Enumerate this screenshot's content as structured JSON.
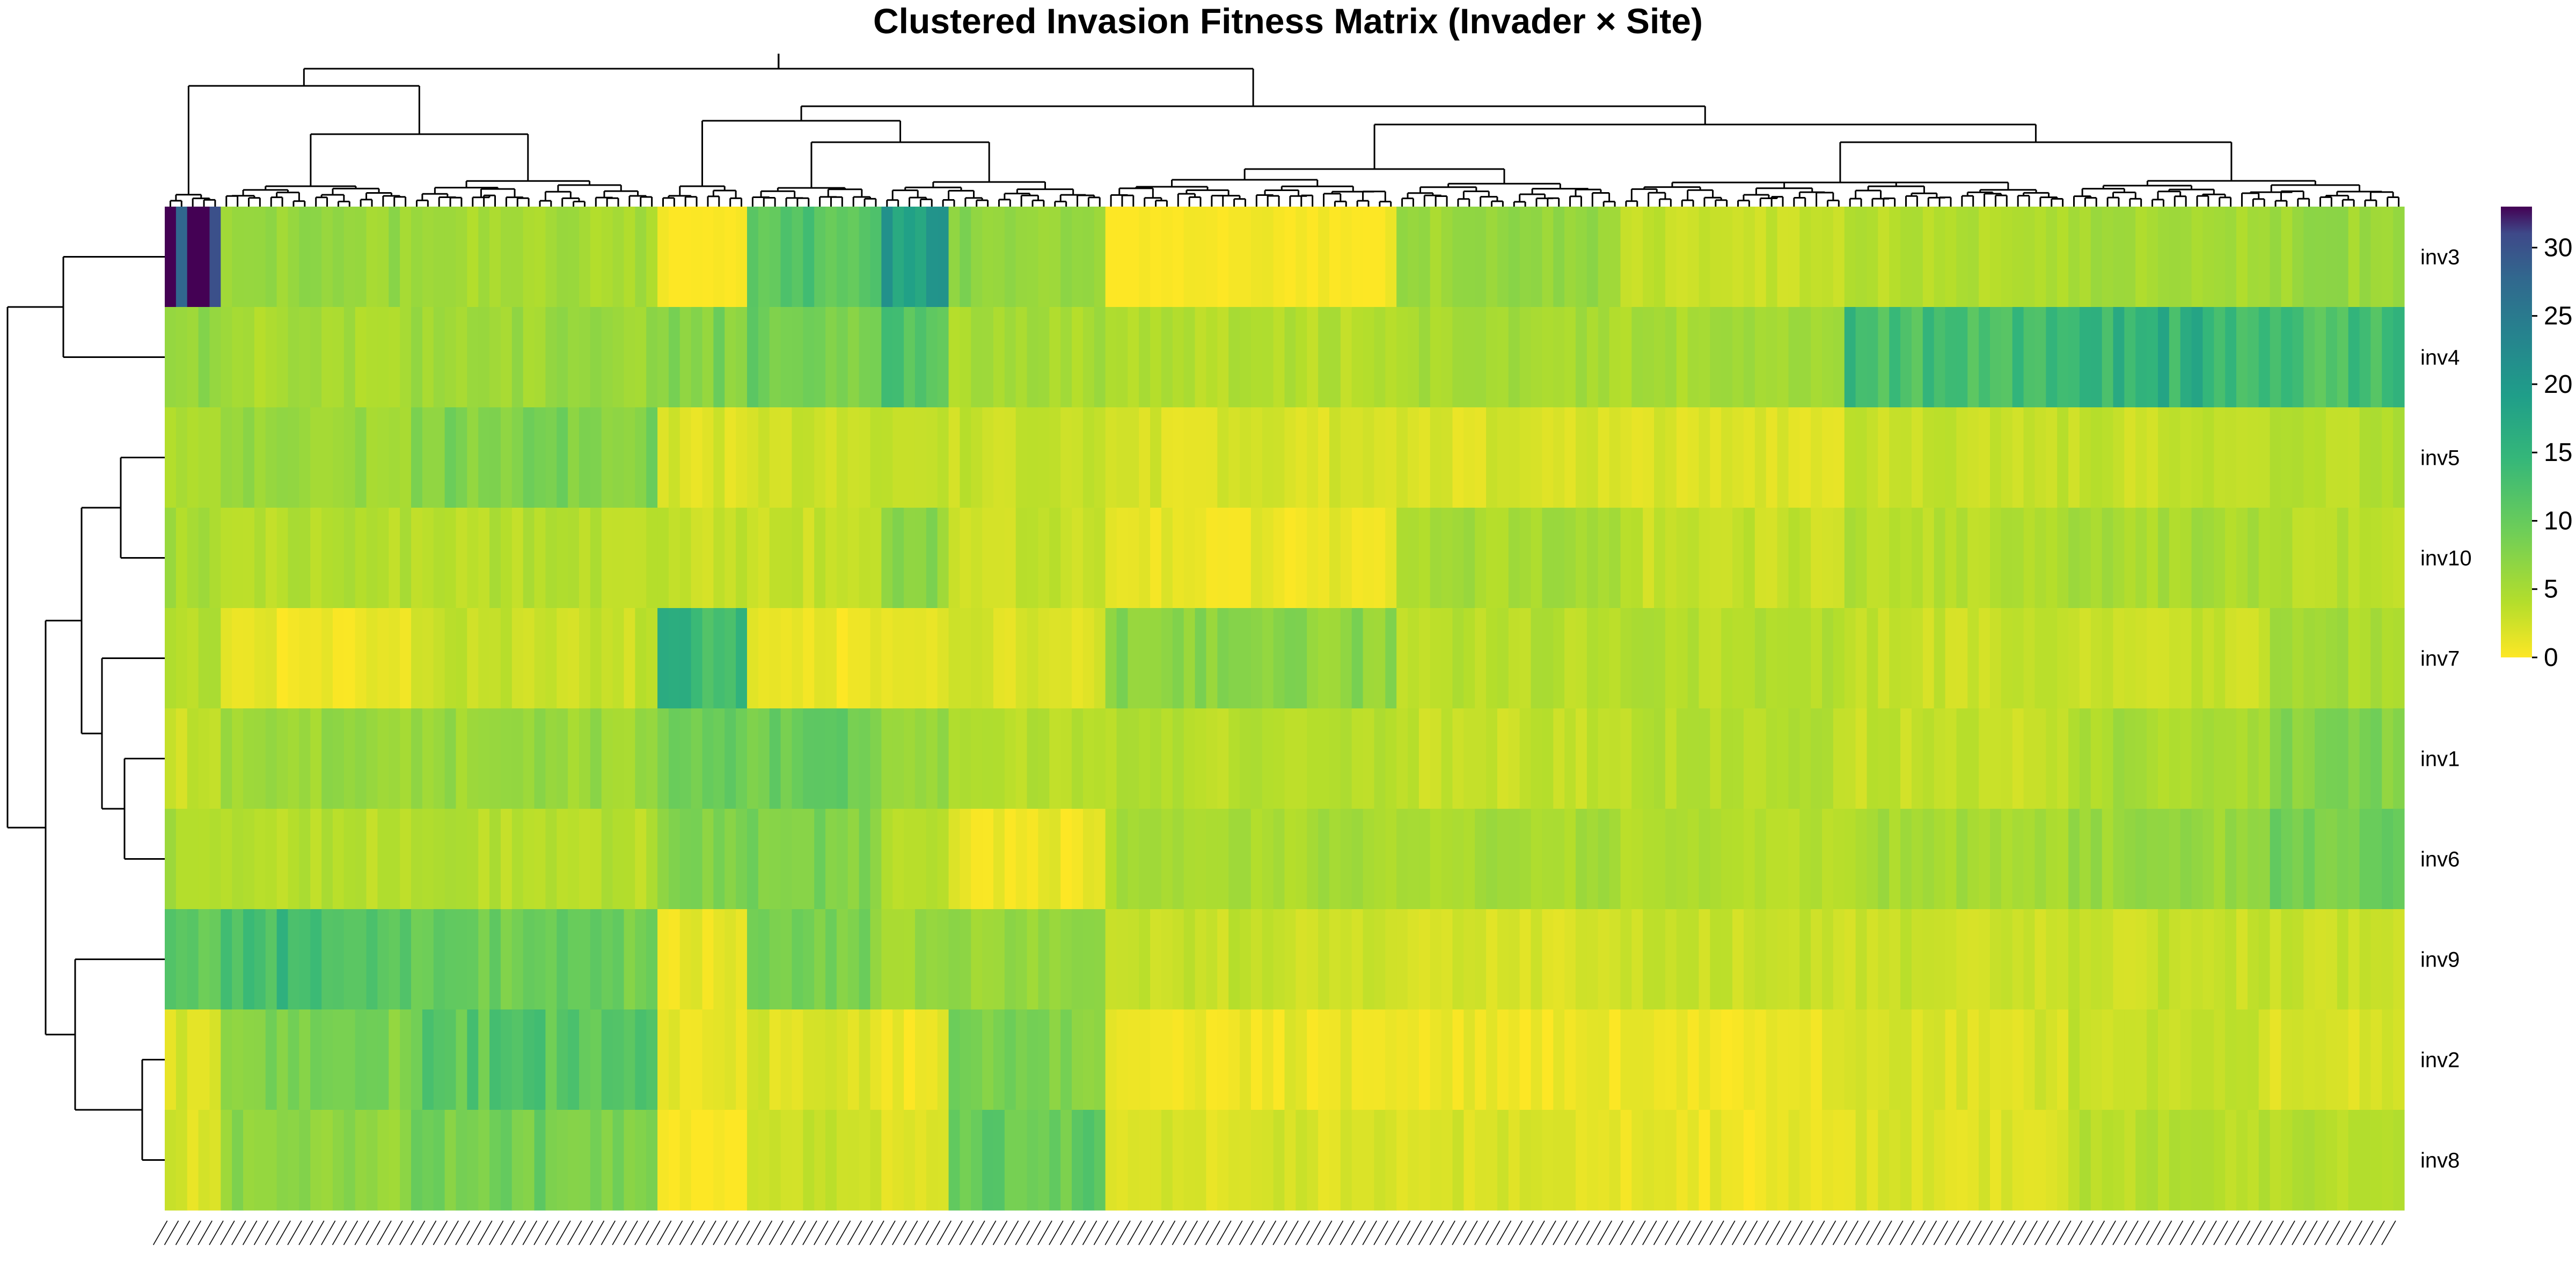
{
  "chart_data": {
    "type": "heatmap",
    "title": "Clustered Invasion Fitness Matrix (Invader × Site)",
    "rows": [
      "inv3",
      "inv4",
      "inv5",
      "inv10",
      "inv7",
      "inv1",
      "inv6",
      "inv9",
      "inv2",
      "inv8"
    ],
    "n_columns": 200,
    "column_labels_legible": false,
    "value_range": [
      0,
      33
    ],
    "colorbar": {
      "ticks": [
        0,
        5,
        10,
        15,
        20,
        25,
        30
      ],
      "colormap": "viridis-reversed",
      "position": "right"
    },
    "row_dendrogram": true,
    "column_dendrogram": true,
    "column_blocks": [
      {
        "span": [
          0,
          5
        ],
        "values": [
          32,
          7,
          4,
          5,
          4,
          3,
          5,
          10,
          2,
          2
        ]
      },
      {
        "span": [
          5,
          22
        ],
        "values": [
          6,
          5,
          6,
          4,
          1,
          6,
          4,
          13,
          8,
          7
        ]
      },
      {
        "span": [
          22,
          44
        ],
        "values": [
          5,
          6,
          8,
          4,
          3,
          6,
          4,
          9,
          11,
          9
        ]
      },
      {
        "span": [
          44,
          52
        ],
        "values": [
          0,
          8,
          2,
          3,
          14,
          9,
          8,
          1,
          1,
          0
        ]
      },
      {
        "span": [
          52,
          64
        ],
        "values": [
          12,
          9,
          3,
          3,
          1,
          10,
          8,
          8,
          2,
          3
        ]
      },
      {
        "span": [
          64,
          70
        ],
        "values": [
          20,
          12,
          3,
          7,
          1,
          6,
          4,
          6,
          1,
          2
        ]
      },
      {
        "span": [
          70,
          84
        ],
        "values": [
          7,
          5,
          3,
          3,
          2,
          4,
          1,
          6,
          8,
          10
        ]
      },
      {
        "span": [
          84,
          110
        ],
        "values": [
          0,
          4,
          2,
          1,
          7,
          4,
          5,
          3,
          1,
          2
        ]
      },
      {
        "span": [
          110,
          130
        ],
        "values": [
          6,
          5,
          2,
          5,
          4,
          3,
          5,
          2,
          1,
          2
        ]
      },
      {
        "span": [
          130,
          150
        ],
        "values": [
          3,
          5,
          2,
          3,
          4,
          4,
          4,
          3,
          1,
          1
        ]
      },
      {
        "span": [
          150,
          170
        ],
        "values": [
          4,
          13,
          3,
          4,
          3,
          3,
          5,
          3,
          2,
          2
        ]
      },
      {
        "span": [
          170,
          188
        ],
        "values": [
          5,
          15,
          3,
          5,
          3,
          5,
          6,
          3,
          3,
          4
        ]
      },
      {
        "span": [
          188,
          200
        ],
        "values": [
          6,
          13,
          4,
          4,
          5,
          8,
          9,
          3,
          2,
          4
        ]
      }
    ]
  }
}
